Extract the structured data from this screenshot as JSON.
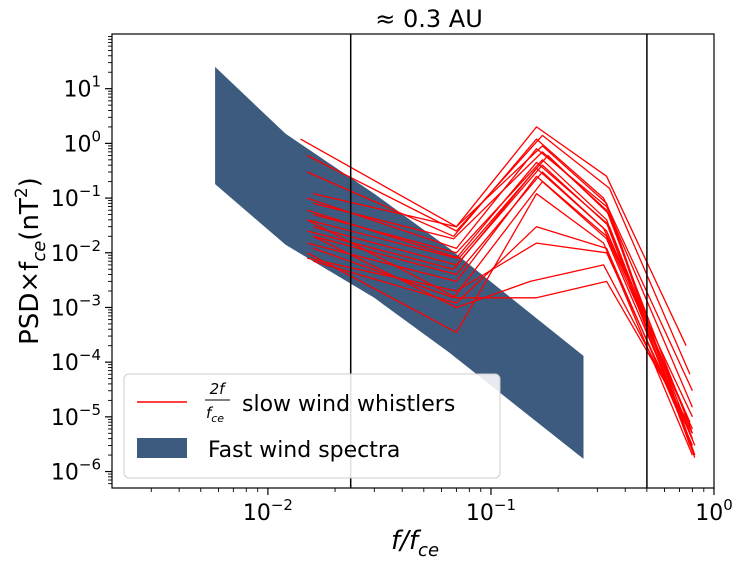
{
  "chart_data": {
    "type": "line",
    "title": "≈ 0.3 AU",
    "xlabel": {
      "main": "f/f",
      "sub": "ce"
    },
    "ylabel": {
      "pre": "PSD×f",
      "sub": "ce",
      "post": "(nT",
      "sup": "2",
      "close": ")"
    },
    "xscale": "log",
    "yscale": "log",
    "xlim": [
      0.002,
      1.0
    ],
    "ylim": [
      5e-07,
      100
    ],
    "x_ticks": [
      {
        "value": 0.01,
        "base": "10",
        "exp": "−2"
      },
      {
        "value": 0.1,
        "base": "10",
        "exp": "−1"
      },
      {
        "value": 1.0,
        "base": "10",
        "exp": "0"
      }
    ],
    "y_ticks": [
      {
        "value": 1e-06,
        "base": "10",
        "exp": "−6"
      },
      {
        "value": 1e-05,
        "base": "10",
        "exp": "−5"
      },
      {
        "value": 0.0001,
        "base": "10",
        "exp": "−4"
      },
      {
        "value": 0.001,
        "base": "10",
        "exp": "−3"
      },
      {
        "value": 0.01,
        "base": "10",
        "exp": "−2"
      },
      {
        "value": 0.1,
        "base": "10",
        "exp": "−1"
      },
      {
        "value": 1.0,
        "base": "10",
        "exp": "0"
      },
      {
        "value": 10.0,
        "base": "10",
        "exp": "1"
      }
    ],
    "vertical_lines": [
      0.0235,
      0.5
    ],
    "band": {
      "name": "Fast wind spectra",
      "color": "#3d5b7e",
      "upper": [
        [
          0.0058,
          25
        ],
        [
          0.012,
          1.5
        ],
        [
          0.03,
          0.12
        ],
        [
          0.065,
          0.012
        ],
        [
          0.26,
          0.00013
        ]
      ],
      "lower": [
        [
          0.0058,
          0.18
        ],
        [
          0.012,
          0.014
        ],
        [
          0.03,
          0.0015
        ],
        [
          0.065,
          0.00015
        ],
        [
          0.26,
          1.7e-06
        ]
      ]
    },
    "series_color": "#ff0000",
    "series": [
      {
        "name": "s1",
        "points": [
          [
            0.014,
            1.2
          ],
          [
            0.07,
            0.03
          ],
          [
            0.16,
            2.0
          ],
          [
            0.33,
            0.25
          ],
          [
            0.75,
            0.0002
          ]
        ]
      },
      {
        "name": "s2",
        "points": [
          [
            0.015,
            0.6
          ],
          [
            0.07,
            0.025
          ],
          [
            0.17,
            1.4
          ],
          [
            0.34,
            0.15
          ],
          [
            0.78,
            6e-05
          ]
        ]
      },
      {
        "name": "s3",
        "points": [
          [
            0.015,
            0.3
          ],
          [
            0.068,
            0.02
          ],
          [
            0.16,
            1.2
          ],
          [
            0.32,
            0.1
          ],
          [
            0.8,
            3e-05
          ]
        ]
      },
      {
        "name": "s4",
        "points": [
          [
            0.016,
            0.12
          ],
          [
            0.07,
            0.03
          ],
          [
            0.17,
            0.9
          ],
          [
            0.33,
            0.08
          ],
          [
            0.82,
            2e-06
          ]
        ]
      },
      {
        "name": "s5",
        "points": [
          [
            0.015,
            0.1
          ],
          [
            0.07,
            0.012
          ],
          [
            0.16,
            0.8
          ],
          [
            0.33,
            0.07
          ],
          [
            0.8,
            1.5e-05
          ]
        ]
      },
      {
        "name": "s6",
        "points": [
          [
            0.016,
            0.08
          ],
          [
            0.068,
            0.018
          ],
          [
            0.17,
            0.7
          ],
          [
            0.33,
            0.06
          ],
          [
            0.8,
            5e-06
          ]
        ]
      },
      {
        "name": "s7",
        "points": [
          [
            0.015,
            0.06
          ],
          [
            0.072,
            0.008
          ],
          [
            0.18,
            0.6
          ],
          [
            0.34,
            0.05
          ],
          [
            0.78,
            3e-06
          ]
        ]
      },
      {
        "name": "s8",
        "points": [
          [
            0.016,
            0.05
          ],
          [
            0.07,
            0.01
          ],
          [
            0.17,
            0.5
          ],
          [
            0.33,
            0.04
          ],
          [
            0.8,
            2.5e-06
          ]
        ]
      },
      {
        "name": "s9",
        "points": [
          [
            0.015,
            0.04
          ],
          [
            0.07,
            0.008
          ],
          [
            0.16,
            0.45
          ],
          [
            0.33,
            0.035
          ],
          [
            0.82,
            1.8e-06
          ]
        ]
      },
      {
        "name": "s10",
        "points": [
          [
            0.016,
            0.03
          ],
          [
            0.07,
            0.006
          ],
          [
            0.17,
            0.4
          ],
          [
            0.34,
            0.03
          ],
          [
            0.8,
            4e-06
          ]
        ]
      },
      {
        "name": "s11",
        "points": [
          [
            0.015,
            0.025
          ],
          [
            0.068,
            0.005
          ],
          [
            0.16,
            0.35
          ],
          [
            0.32,
            0.028
          ],
          [
            0.8,
            1e-05
          ]
        ]
      },
      {
        "name": "s12",
        "points": [
          [
            0.016,
            0.02
          ],
          [
            0.07,
            0.004
          ],
          [
            0.17,
            0.3
          ],
          [
            0.33,
            0.025
          ],
          [
            0.78,
            8e-06
          ]
        ]
      },
      {
        "name": "s13",
        "points": [
          [
            0.015,
            0.015
          ],
          [
            0.07,
            0.003
          ],
          [
            0.16,
            0.25
          ],
          [
            0.33,
            0.02
          ],
          [
            0.8,
            6e-06
          ]
        ]
      },
      {
        "name": "s14",
        "points": [
          [
            0.016,
            0.012
          ],
          [
            0.068,
            0.0015
          ],
          [
            0.17,
            0.2
          ],
          [
            0.33,
            0.018
          ],
          [
            0.82,
            3e-06
          ]
        ]
      },
      {
        "name": "s15",
        "points": [
          [
            0.015,
            0.01
          ],
          [
            0.07,
            0.00035
          ],
          [
            0.16,
            0.12
          ],
          [
            0.32,
            0.015
          ],
          [
            0.8,
            2e-06
          ]
        ]
      },
      {
        "name": "s16",
        "points": [
          [
            0.016,
            0.007
          ],
          [
            0.07,
            0.0012
          ],
          [
            0.16,
            0.03
          ],
          [
            0.33,
            0.012
          ],
          [
            0.8,
            3e-06
          ]
        ]
      },
      {
        "name": "s17",
        "points": [
          [
            0.015,
            0.008
          ],
          [
            0.07,
            0.002
          ],
          [
            0.16,
            0.015
          ],
          [
            0.33,
            0.01
          ],
          [
            0.8,
            4e-06
          ]
        ]
      },
      {
        "name": "s18",
        "points": [
          [
            0.016,
            0.02
          ],
          [
            0.07,
            0.001
          ],
          [
            0.15,
            0.003
          ],
          [
            0.32,
            0.006
          ],
          [
            0.8,
            5e-06
          ]
        ]
      },
      {
        "name": "s19",
        "points": [
          [
            0.015,
            0.04
          ],
          [
            0.07,
            0.0015
          ],
          [
            0.16,
            0.0015
          ],
          [
            0.33,
            0.003
          ],
          [
            0.78,
            7e-06
          ]
        ]
      }
    ],
    "legend": {
      "position": "lower-left",
      "line_entry": {
        "frac_num": "2f",
        "frac_den": "f",
        "frac_den_sub": "ce",
        "text": "slow wind whistlers"
      },
      "band_entry": {
        "text": "Fast wind spectra"
      }
    }
  }
}
